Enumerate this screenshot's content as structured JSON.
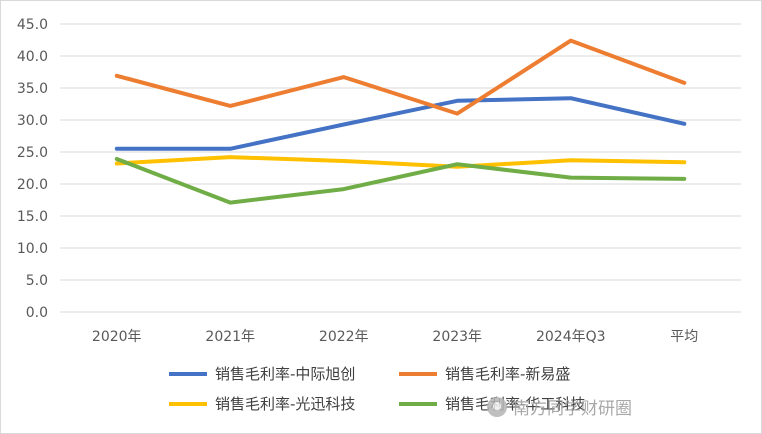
{
  "chart_data": {
    "type": "line",
    "categories": [
      "2020年",
      "2021年",
      "2022年",
      "2023年",
      "2024年Q3",
      "平均"
    ],
    "ylim": [
      0,
      45
    ],
    "yticks": [
      "0.0",
      "5.0",
      "10.0",
      "15.0",
      "20.0",
      "25.0",
      "30.0",
      "35.0",
      "40.0",
      "45.0"
    ],
    "grid": true,
    "legend_position": "bottom",
    "series": [
      {
        "name": "销售毛利率-中际旭创",
        "color": "#4472C4",
        "values": [
          25.5,
          25.5,
          29.3,
          33.0,
          33.4,
          29.4
        ]
      },
      {
        "name": "销售毛利率-新易盛",
        "color": "#ED7D31",
        "values": [
          36.9,
          32.2,
          36.7,
          31.0,
          42.4,
          35.8
        ]
      },
      {
        "name": "销售毛利率-光迅科技",
        "color": "#FFC000",
        "values": [
          23.2,
          24.2,
          23.6,
          22.7,
          23.7,
          23.4
        ]
      },
      {
        "name": "销售毛利率-华工科技",
        "color": "#70AD47",
        "values": [
          23.9,
          17.1,
          19.2,
          23.1,
          21.0,
          20.8
        ]
      }
    ]
  },
  "watermark": {
    "text": "南方同学财研圈",
    "icon": "wechat-account-icon"
  }
}
